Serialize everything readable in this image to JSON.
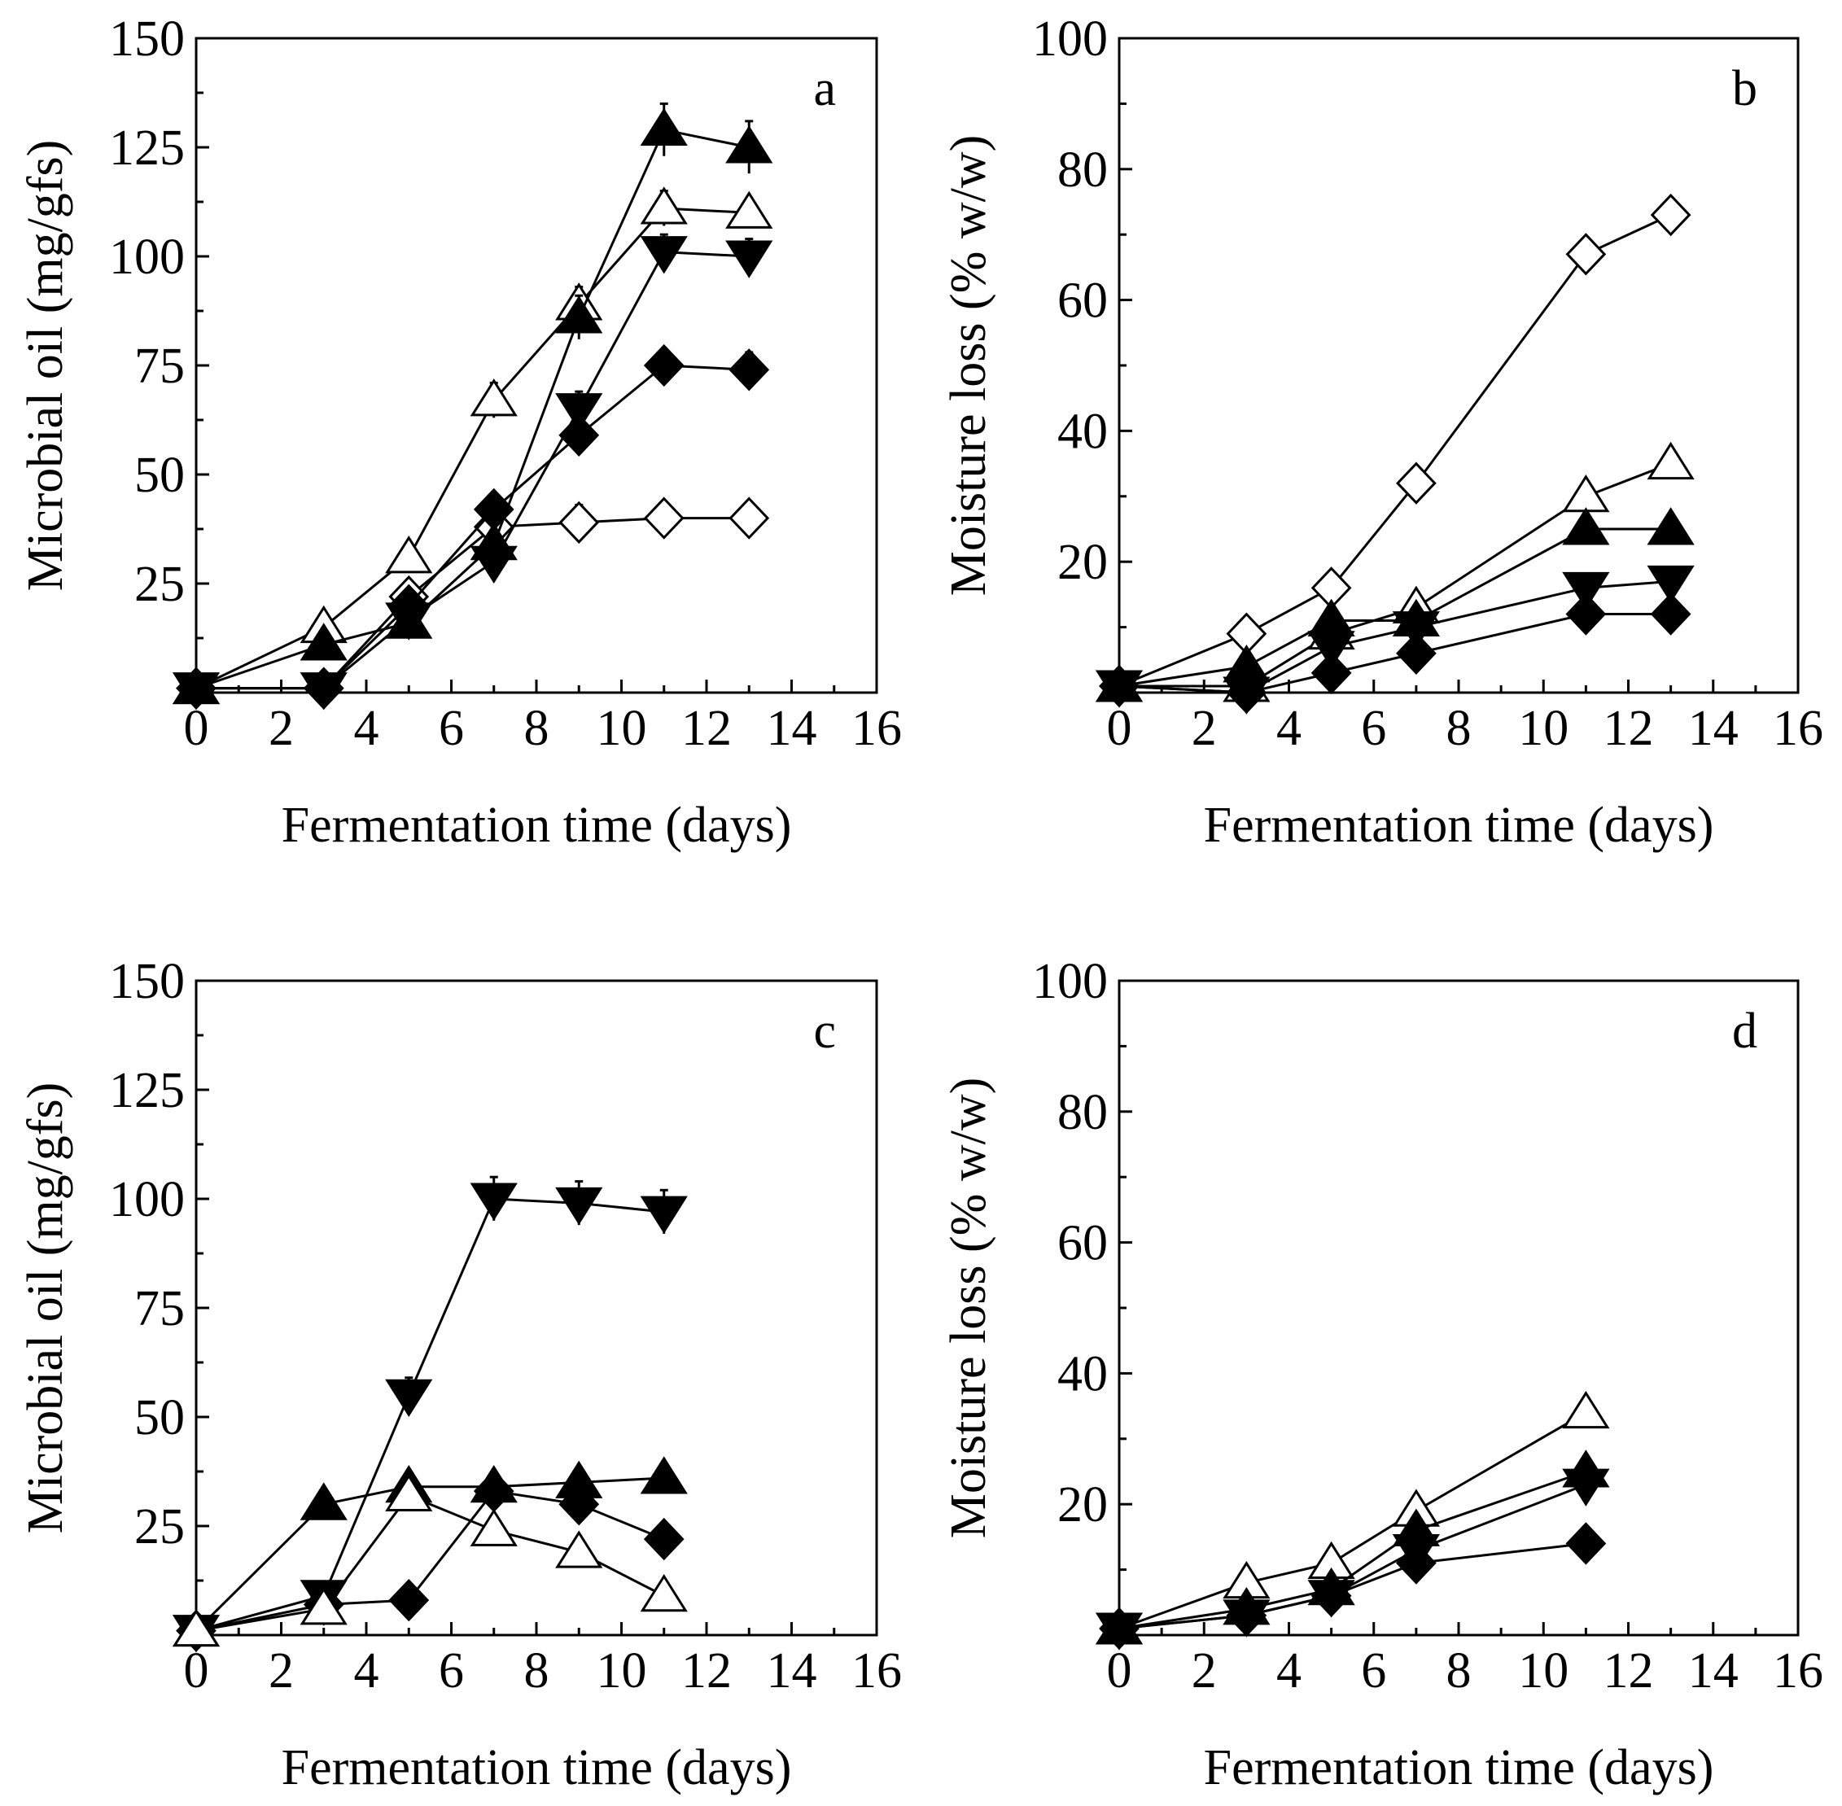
{
  "figure_colors": {
    "axis": "#000000",
    "marker_filled": "#000000",
    "marker_open": "#ffffff"
  },
  "chart_data": [
    {
      "panel": "a",
      "type": "line",
      "xlabel": "Fermentation time (days)",
      "ylabel": "Microbial oil (mg/gfs)",
      "xlim": [
        0,
        16
      ],
      "ylim": [
        0,
        150
      ],
      "xticks": [
        0,
        2,
        4,
        6,
        8,
        10,
        12,
        14,
        16
      ],
      "yticks": [
        25,
        50,
        75,
        100,
        125,
        150
      ],
      "series": [
        {
          "marker": "open-diamond",
          "x": [
            0,
            3,
            5,
            7,
            9,
            11,
            13
          ],
          "y": [
            1,
            1,
            22,
            38,
            39,
            40,
            40
          ],
          "err": [
            0,
            1,
            3,
            3,
            4,
            2,
            2
          ]
        },
        {
          "marker": "open-triangle-up",
          "x": [
            0,
            3,
            5,
            7,
            9,
            11,
            13
          ],
          "y": [
            1,
            15,
            31,
            67,
            89,
            111,
            110
          ],
          "err": [
            0,
            1,
            2,
            4,
            4,
            4,
            3
          ]
        },
        {
          "marker": "filled-triangle-up",
          "x": [
            0,
            3,
            5,
            7,
            9,
            11,
            13
          ],
          "y": [
            1,
            11,
            16,
            34,
            86,
            129,
            125
          ],
          "err": [
            0,
            1,
            2,
            3,
            5,
            6,
            6
          ]
        },
        {
          "marker": "filled-triangle-down",
          "x": [
            0,
            3,
            5,
            7,
            9,
            11,
            13
          ],
          "y": [
            1,
            1,
            17,
            30,
            65,
            101,
            100
          ],
          "err": [
            0,
            1,
            3,
            3,
            4,
            4,
            4
          ]
        },
        {
          "marker": "filled-diamond",
          "x": [
            0,
            3,
            5,
            7,
            9,
            11,
            13
          ],
          "y": [
            1,
            1,
            20,
            42,
            59,
            75,
            74
          ],
          "err": [
            0,
            1,
            2,
            3,
            3,
            3,
            4
          ]
        }
      ]
    },
    {
      "panel": "b",
      "type": "line",
      "xlabel": "Fermentation time (days)",
      "ylabel": "Moisture loss (% w/w)",
      "xlim": [
        0,
        16
      ],
      "ylim": [
        0,
        100
      ],
      "xticks": [
        0,
        2,
        4,
        6,
        8,
        10,
        12,
        14,
        16
      ],
      "yticks": [
        20,
        40,
        60,
        80,
        100
      ],
      "series": [
        {
          "marker": "open-diamond",
          "x": [
            0,
            3,
            5,
            7,
            11,
            13
          ],
          "y": [
            1,
            9,
            16,
            32,
            67,
            73
          ],
          "err": [
            0,
            1,
            1,
            1,
            1,
            1
          ]
        },
        {
          "marker": "open-triangle-up",
          "x": [
            0,
            3,
            5,
            7,
            11,
            13
          ],
          "y": [
            1,
            1,
            9,
            13,
            30,
            35
          ],
          "err": [
            0,
            1,
            2,
            2,
            2,
            2
          ]
        },
        {
          "marker": "filled-triangle-up",
          "x": [
            0,
            3,
            5,
            7,
            11,
            13
          ],
          "y": [
            1,
            4,
            11,
            11,
            25,
            25
          ],
          "err": [
            0,
            1,
            1,
            1,
            2,
            2
          ]
        },
        {
          "marker": "filled-triangle-down",
          "x": [
            0,
            3,
            5,
            7,
            11,
            13
          ],
          "y": [
            1,
            0,
            7,
            10,
            16,
            17
          ],
          "err": [
            0,
            1,
            1,
            1,
            1,
            1
          ]
        },
        {
          "marker": "filled-diamond",
          "x": [
            0,
            3,
            5,
            7,
            11,
            13
          ],
          "y": [
            1,
            0,
            3,
            6,
            12,
            12
          ],
          "err": [
            0,
            1,
            1,
            1,
            1,
            1
          ]
        }
      ]
    },
    {
      "panel": "c",
      "type": "line",
      "xlabel": "Fermentation time (days)",
      "ylabel": "Microbial oil (mg/gfs)",
      "xlim": [
        0,
        16
      ],
      "ylim": [
        0,
        150
      ],
      "xticks": [
        0,
        2,
        4,
        6,
        8,
        10,
        12,
        14,
        16
      ],
      "yticks": [
        25,
        50,
        75,
        100,
        125,
        150
      ],
      "series": [
        {
          "marker": "filled-triangle-down",
          "x": [
            0,
            3,
            5,
            7,
            9,
            11
          ],
          "y": [
            1,
            9,
            55,
            100,
            99,
            97
          ],
          "err": [
            0,
            1,
            4,
            5,
            5,
            5
          ]
        },
        {
          "marker": "filled-triangle-up",
          "x": [
            0,
            3,
            5,
            7,
            9,
            11
          ],
          "y": [
            1,
            30,
            34,
            34,
            35,
            36
          ],
          "err": [
            0,
            1,
            2,
            2,
            2,
            3
          ]
        },
        {
          "marker": "filled-diamond",
          "x": [
            0,
            3,
            5,
            7,
            9,
            11
          ],
          "y": [
            1,
            7,
            8,
            33,
            30,
            22
          ],
          "err": [
            0,
            1,
            1,
            2,
            2,
            2
          ]
        },
        {
          "marker": "open-triangle-up",
          "x": [
            0,
            3,
            5,
            7,
            9,
            11
          ],
          "y": [
            1,
            6,
            32,
            24,
            19,
            9
          ],
          "err": [
            0,
            1,
            2,
            3,
            2,
            2
          ]
        }
      ]
    },
    {
      "panel": "d",
      "type": "line",
      "xlabel": "Fermentation time (days)",
      "ylabel": "Moisture loss (% w/w)",
      "xlim": [
        0,
        16
      ],
      "ylim": [
        0,
        100
      ],
      "xticks": [
        0,
        2,
        4,
        6,
        8,
        10,
        12,
        14,
        16
      ],
      "yticks": [
        20,
        40,
        60,
        80,
        100
      ],
      "series": [
        {
          "marker": "open-triangle-up",
          "x": [
            0,
            3,
            5,
            7,
            11
          ],
          "y": [
            1,
            8,
            11,
            19,
            34
          ],
          "err": [
            0,
            1,
            1,
            1,
            2
          ]
        },
        {
          "marker": "filled-triangle-up",
          "x": [
            0,
            3,
            5,
            7,
            11
          ],
          "y": [
            1,
            4,
            7,
            16,
            25
          ],
          "err": [
            0,
            1,
            1,
            2,
            2
          ]
        },
        {
          "marker": "filled-triangle-down",
          "x": [
            0,
            3,
            5,
            7,
            11
          ],
          "y": [
            1,
            3,
            6,
            13,
            23
          ],
          "err": [
            0,
            1,
            1,
            2,
            2
          ]
        },
        {
          "marker": "filled-diamond",
          "x": [
            0,
            3,
            5,
            7,
            11
          ],
          "y": [
            1,
            3,
            6,
            11,
            14
          ],
          "err": [
            0,
            1,
            1,
            1,
            1
          ]
        }
      ]
    }
  ]
}
